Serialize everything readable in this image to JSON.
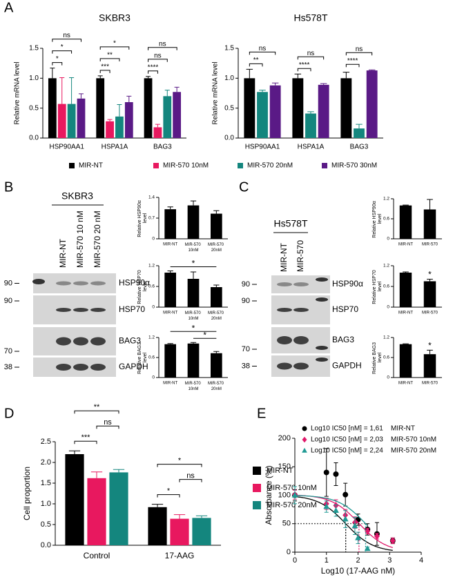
{
  "panel_labels": [
    "A",
    "B",
    "C",
    "D",
    "E"
  ],
  "blots": [
    {
      "title": "SKBR3",
      "lanes": [
        "MIR-NT",
        "MIR-570 10 nM",
        "MIR-570 20 nM"
      ],
      "strips": [
        {
          "marker": 90,
          "protein": "HSP90α"
        },
        {
          "marker": 90,
          "protein": "HSP70"
        },
        {
          "marker": 70,
          "protein": "BAG3"
        },
        {
          "marker": 38,
          "protein": "GAPDH"
        }
      ]
    },
    {
      "title": "Hs578T",
      "lanes": [
        "MIR-NT",
        "MIR-570"
      ],
      "strips": [
        {
          "marker": 90,
          "protein": "HSP90α"
        },
        {
          "marker": 90,
          "protein": "HSP70"
        },
        {
          "marker": 70,
          "protein": "BAG3"
        },
        {
          "marker": 38,
          "protein": "GAPDH"
        }
      ]
    }
  ],
  "chart_data": [
    {
      "type": "bar",
      "title": "SKBR3",
      "y_label": "Relative mRNA level",
      "categories": [
        "HSP90AA1",
        "HSPA1A",
        "BAG3"
      ],
      "series": [
        {
          "name": "MIR-NT",
          "color": "#000000",
          "values": [
            1.0,
            1.0,
            1.0
          ],
          "errors": [
            0.17,
            0.04,
            0.03
          ]
        },
        {
          "name": "MIR-570 10nM",
          "color": "#e8185f",
          "values": [
            0.57,
            0.28,
            0.18
          ],
          "errors": [
            0.44,
            0.03,
            0.05
          ]
        },
        {
          "name": "MIR-570 20nM",
          "color": "#14867e",
          "values": [
            0.57,
            0.36,
            0.7
          ],
          "errors": [
            0.44,
            0.2,
            0.1
          ]
        },
        {
          "name": "MIR-570 30nM",
          "color": "#5a1a86",
          "values": [
            0.66,
            0.6,
            0.77
          ],
          "errors": [
            0.08,
            0.1,
            0.08
          ]
        }
      ],
      "ylim": [
        0,
        1.5
      ],
      "yticks": [
        {
          "value": 0,
          "label": "0.0"
        },
        {
          "value": 0.5,
          "label": "0.5"
        },
        {
          "value": 1,
          "label": "1.0"
        },
        {
          "value": 1.5,
          "label": "1.5"
        }
      ],
      "legend": "bottom",
      "significance": [
        {
          "category": "HSP90AA1",
          "pair": [
            "MIR-NT",
            "MIR-570 10nM"
          ],
          "label": "*"
        },
        {
          "category": "HSP90AA1",
          "pair": [
            "MIR-NT",
            "MIR-570 20nM"
          ],
          "label": "*"
        },
        {
          "category": "HSP90AA1",
          "pair": [
            "MIR-NT",
            "MIR-570 30nM"
          ],
          "label": "ns"
        },
        {
          "category": "HSPA1A",
          "pair": [
            "MIR-NT",
            "MIR-570 10nM"
          ],
          "label": "***"
        },
        {
          "category": "HSPA1A",
          "pair": [
            "MIR-NT",
            "MIR-570 20nM"
          ],
          "label": "**"
        },
        {
          "category": "HSPA1A",
          "pair": [
            "MIR-NT",
            "MIR-570 30nM"
          ],
          "label": "*"
        },
        {
          "category": "BAG3",
          "pair": [
            "MIR-NT",
            "MIR-570 10nM"
          ],
          "label": "****"
        },
        {
          "category": "BAG3",
          "pair": [
            "MIR-NT",
            "MIR-570 20nM"
          ],
          "label": "ns"
        },
        {
          "category": "BAG3",
          "pair": [
            "MIR-NT",
            "MIR-570 30nM"
          ],
          "label": "ns"
        }
      ]
    },
    {
      "type": "bar",
      "title": "Hs578T",
      "y_label": "Relative mRNA level",
      "categories": [
        "HSP90AA1",
        "HSPA1A",
        "BAG3"
      ],
      "series": [
        {
          "name": "MIR-NT",
          "color": "#000000",
          "values": [
            1.0,
            1.0,
            1.0
          ],
          "errors": [
            0.15,
            0.07,
            0.1
          ]
        },
        {
          "name": "MIR-570 20nM",
          "color": "#14867e",
          "values": [
            0.77,
            0.41,
            0.16
          ],
          "errors": [
            0.03,
            0.03,
            0.07
          ]
        },
        {
          "name": "MIR-570 30nM",
          "color": "#5a1a86",
          "values": [
            0.88,
            0.89,
            1.13
          ],
          "errors": [
            0.04,
            0.02,
            0.01
          ]
        }
      ],
      "ylim": [
        0,
        1.5
      ],
      "yticks": [
        {
          "value": 0,
          "label": "0.0"
        },
        {
          "value": 0.5,
          "label": "0.5"
        },
        {
          "value": 1,
          "label": "1.0"
        },
        {
          "value": 1.5,
          "label": "1.5"
        }
      ],
      "significance": [
        {
          "category": "HSP90AA1",
          "pair": [
            "MIR-NT",
            "MIR-570 20nM"
          ],
          "label": "**"
        },
        {
          "category": "HSP90AA1",
          "pair": [
            "MIR-NT",
            "MIR-570 30nM"
          ],
          "label": "ns"
        },
        {
          "category": "HSPA1A",
          "pair": [
            "MIR-NT",
            "MIR-570 20nM"
          ],
          "label": "****"
        },
        {
          "category": "HSPA1A",
          "pair": [
            "MIR-NT",
            "MIR-570 30nM"
          ],
          "label": "ns"
        },
        {
          "category": "BAG3",
          "pair": [
            "MIR-NT",
            "MIR-570 20nM"
          ],
          "label": "****"
        },
        {
          "category": "BAG3",
          "pair": [
            "MIR-NT",
            "MIR-570 30nM"
          ],
          "label": "ns"
        }
      ]
    },
    {
      "type": "bar",
      "y_label": "Relative HSP90α level",
      "categories": [
        "MIR-NT",
        "MIR-570 10nM",
        "MIR-570 20nM"
      ],
      "color": "#000000",
      "values": [
        1.0,
        1.13,
        0.85
      ],
      "errors": [
        0.08,
        0.15,
        0.1
      ],
      "ylim": [
        0,
        1.4
      ],
      "yticks": [
        0,
        0.7,
        1.4
      ]
    },
    {
      "type": "bar",
      "y_label": "Relative HSP70 level",
      "categories": [
        "MIR-NT",
        "MIR-570 10nM",
        "MIR-570 20nM"
      ],
      "color": "#000000",
      "values": [
        1.0,
        0.82,
        0.58
      ],
      "errors": [
        0.05,
        0.2,
        0.06
      ],
      "ylim": [
        0,
        1.2
      ],
      "yticks": [
        0,
        0.6,
        1.2
      ],
      "significance": [
        {
          "pair": [
            "MIR-NT",
            "MIR-570 20nM"
          ],
          "label": "*"
        }
      ]
    },
    {
      "type": "bar",
      "y_label": "Relative BAG3 level",
      "categories": [
        "MIR-NT",
        "MIR-570 10nM",
        "MIR-570 20nM"
      ],
      "color": "#000000",
      "values": [
        1.0,
        1.02,
        0.73
      ],
      "errors": [
        0.02,
        0.03,
        0.05
      ],
      "ylim": [
        0,
        1.2
      ],
      "yticks": [
        0,
        0.6,
        1.2
      ],
      "significance": [
        {
          "pair": [
            "MIR-570 10nM",
            "MIR-570 20nM"
          ],
          "label": "*"
        },
        {
          "pair": [
            "MIR-NT",
            "MIR-570 20nM"
          ],
          "label": "*"
        }
      ]
    },
    {
      "type": "bar",
      "y_label": "Relative HSP90α level",
      "categories": [
        "MIR-NT",
        "MIR-570"
      ],
      "color": "#000000",
      "values": [
        1.0,
        0.88
      ],
      "errors": [
        0.01,
        0.3
      ],
      "ylim": [
        0,
        1.2
      ],
      "yticks": [
        0,
        0.6,
        1.2
      ]
    },
    {
      "type": "bar",
      "y_label": "Relative HSP70 level",
      "categories": [
        "MIR-NT",
        "MIR-570"
      ],
      "color": "#000000",
      "values": [
        1.0,
        0.75
      ],
      "errors": [
        0.02,
        0.06
      ],
      "ylim": [
        0,
        1.2
      ],
      "yticks": [
        0,
        0.6,
        1.2
      ],
      "significance": [
        {
          "over": "MIR-570",
          "label": "*"
        }
      ]
    },
    {
      "type": "bar",
      "y_label": "Relative BAG3 level",
      "categories": [
        "MIR-NT",
        "MIR-570"
      ],
      "color": "#000000",
      "values": [
        1.0,
        0.7
      ],
      "errors": [
        0.01,
        0.12
      ],
      "ylim": [
        0,
        1.2
      ],
      "yticks": [
        0,
        0.6,
        1.2
      ],
      "significance": [
        {
          "over": "MIR-570",
          "label": "*"
        }
      ]
    },
    {
      "type": "bar",
      "y_label": "Cell proportion",
      "categories": [
        "Control",
        "17-AAG"
      ],
      "series": [
        {
          "name": "MIR-NT",
          "color": "#000000",
          "values": [
            2.2,
            0.92
          ],
          "errors": [
            0.08,
            0.07
          ]
        },
        {
          "name": "MIR-570 10nM",
          "color": "#e8185f",
          "values": [
            1.62,
            0.64
          ],
          "errors": [
            0.15,
            0.1
          ]
        },
        {
          "name": "MIR-570 20nM",
          "color": "#14867e",
          "values": [
            1.76,
            0.66
          ],
          "errors": [
            0.07,
            0.05
          ]
        }
      ],
      "ylim": [
        0,
        2.5
      ],
      "yticks": [
        {
          "value": 0,
          "label": "0.0"
        },
        {
          "value": 0.5,
          "label": "0.5"
        },
        {
          "value": 1,
          "label": "1.0"
        },
        {
          "value": 1.5,
          "label": "1.5"
        },
        {
          "value": 2,
          "label": "2.0"
        },
        {
          "value": 2.5,
          "label": "2.5"
        }
      ],
      "legend": "right",
      "significance": [
        {
          "category": "Control",
          "pair": [
            "MIR-NT",
            "MIR-570 10nM"
          ],
          "label": "***"
        },
        {
          "category": "Control",
          "pair": [
            "MIR-570 10nM",
            "MIR-570 20nM"
          ],
          "label": "ns"
        },
        {
          "category": "Control",
          "pair": [
            "MIR-NT",
            "MIR-570 20nM"
          ],
          "label": "**"
        },
        {
          "category": "17-AAG",
          "pair": [
            "MIR-NT",
            "MIR-570 10nM"
          ],
          "label": "*"
        },
        {
          "category": "17-AAG",
          "pair": [
            "MIR-570 10nM",
            "MIR-570 20nM"
          ],
          "label": "ns"
        },
        {
          "category": "17-AAG",
          "pair": [
            "MIR-NT",
            "MIR-570 20nM"
          ],
          "label": "*"
        }
      ]
    },
    {
      "type": "scatter",
      "y_label": "Absorbance (%)",
      "x_label": "Log10 (17-AAG nM)",
      "xlim": [
        0,
        4
      ],
      "xticks": [
        0,
        1,
        2,
        3,
        4
      ],
      "ylim": [
        0,
        200
      ],
      "yticks": [
        0,
        50,
        100,
        150,
        200
      ],
      "series": [
        {
          "name": "MIR-NT",
          "color": "#000000",
          "marker": "circle",
          "ic50": 1.61,
          "ic50_label": "Log10 IC50 [nM] = 1,61",
          "x": [
            0,
            1,
            1.3,
            1.6,
            2,
            2.3,
            2.6,
            3.1
          ],
          "values": [
            100,
            140,
            137,
            101,
            57,
            40,
            32,
            20
          ],
          "errors": [
            10,
            42,
            20,
            20,
            10,
            10,
            20,
            5
          ]
        },
        {
          "name": "MIR-570 10nM",
          "color": "#e0186a",
          "marker": "diamond",
          "ic50": 2.03,
          "ic50_label": "Log10 IC50 [nM] = 2,03",
          "x": [
            0,
            1,
            1.3,
            1.6,
            1.9,
            2.3,
            2.6,
            3.1
          ],
          "values": [
            101,
            85,
            82,
            65,
            52,
            37,
            28,
            20
          ],
          "errors": [
            8,
            10,
            10,
            10,
            10,
            5,
            5,
            5
          ]
        },
        {
          "name": "MIR-570 20nM",
          "color": "#1f9a94",
          "marker": "triangle",
          "ic50": 2.24,
          "ic50_label": "Log10 IC50 [nM] = 2,24",
          "x": [
            0,
            1,
            1.3,
            1.6,
            1.9,
            2,
            2.3
          ],
          "values": [
            100,
            80,
            73,
            58,
            46,
            25,
            6
          ],
          "errors": [
            15,
            10,
            10,
            15,
            15,
            10,
            3
          ]
        }
      ]
    }
  ]
}
